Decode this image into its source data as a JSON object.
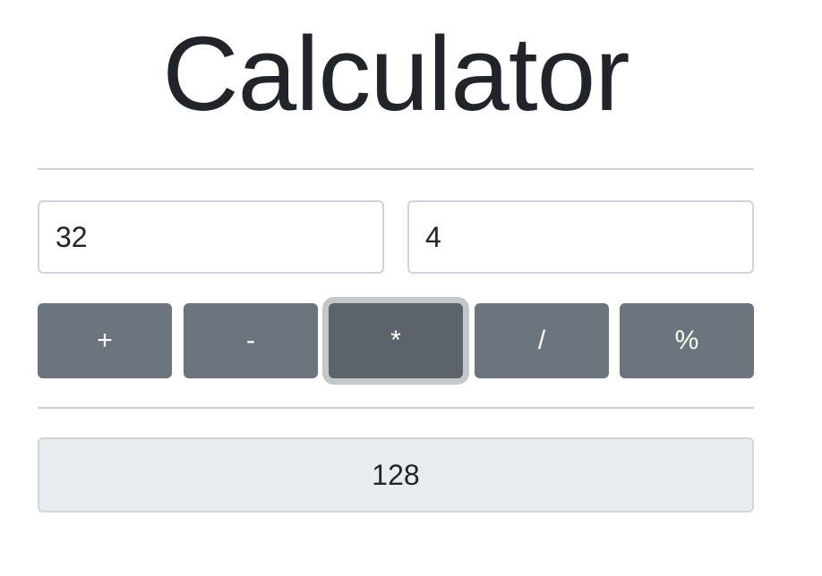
{
  "title": "Calculator",
  "inputs": {
    "first_value": "32",
    "second_value": "4"
  },
  "operations": {
    "add": "+",
    "subtract": "-",
    "multiply": "*",
    "divide": "/",
    "modulo": "%",
    "active": "multiply"
  },
  "result": "128",
  "colors": {
    "button": "#6c757d",
    "button_active": "#5c636a",
    "result_bg": "#e9ecef",
    "text": "#212529"
  }
}
